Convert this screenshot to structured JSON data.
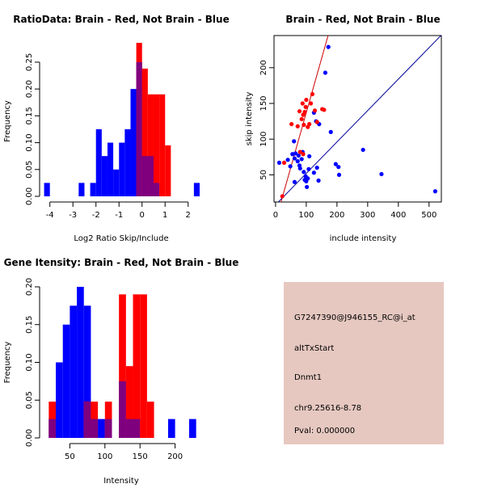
{
  "colors": {
    "red": "#ff0000",
    "blue": "#0000ff",
    "overlap": "#7f007f",
    "panel_bg": "#e6c8c0",
    "pval": "#aa0000",
    "red_line": "#cc0000",
    "blue_line": "#000099"
  },
  "chart_data": [
    {
      "id": "ratio",
      "type": "bar",
      "title": "RatioData: Brain - Red, Not Brain - Blue",
      "xlabel": "Log2 Ratio Skip/Include",
      "ylabel": "Frequency",
      "xlim": [
        -4.2,
        2.5
      ],
      "ylim": [
        0,
        0.28
      ],
      "xticks": [
        -4,
        -3,
        -2,
        -1,
        0,
        1,
        2
      ],
      "yticks": [
        0.0,
        0.05,
        0.1,
        0.15,
        0.2,
        0.25
      ],
      "bin_width": 0.25,
      "series": [
        {
          "name": "Not Brain",
          "color_key": "blue",
          "bins": [
            {
              "x0": -4.25,
              "v": 0.025
            },
            {
              "x0": -2.75,
              "v": 0.025
            },
            {
              "x0": -2.25,
              "v": 0.025
            },
            {
              "x0": -2.0,
              "v": 0.125
            },
            {
              "x0": -1.75,
              "v": 0.075
            },
            {
              "x0": -1.5,
              "v": 0.1
            },
            {
              "x0": -1.25,
              "v": 0.05
            },
            {
              "x0": -1.0,
              "v": 0.1
            },
            {
              "x0": -0.75,
              "v": 0.125
            },
            {
              "x0": -0.5,
              "v": 0.2
            },
            {
              "x0": -0.25,
              "v": 0.25
            },
            {
              "x0": 0.0,
              "v": 0.075
            },
            {
              "x0": 0.25,
              "v": 0.075
            },
            {
              "x0": 0.5,
              "v": 0.025
            },
            {
              "x0": 2.25,
              "v": 0.025
            }
          ]
        },
        {
          "name": "Brain",
          "color_key": "red",
          "bins": [
            {
              "x0": -0.25,
              "v": 0.286
            },
            {
              "x0": 0.0,
              "v": 0.238
            },
            {
              "x0": 0.25,
              "v": 0.19
            },
            {
              "x0": 0.5,
              "v": 0.19
            },
            {
              "x0": 0.75,
              "v": 0.19
            },
            {
              "x0": 1.0,
              "v": 0.095
            }
          ]
        }
      ]
    },
    {
      "id": "scatter",
      "type": "scatter",
      "title": "Brain - Red, Not Brain - Blue",
      "xlabel": "include intensity",
      "ylabel": "skip intensity",
      "xlim": [
        -5,
        540
      ],
      "ylim": [
        12,
        245
      ],
      "xticks": [
        0,
        100,
        200,
        300,
        400,
        500
      ],
      "yticks": [
        50,
        100,
        150,
        200
      ],
      "series": [
        {
          "name": "Not Brain",
          "color_key": "blue",
          "points": [
            [
              12,
              67
            ],
            [
              48,
              62
            ],
            [
              40,
              71
            ],
            [
              55,
              79
            ],
            [
              62,
              73
            ],
            [
              65,
              80
            ],
            [
              72,
              69
            ],
            [
              75,
              77
            ],
            [
              78,
              63
            ],
            [
              80,
              59
            ],
            [
              85,
              72
            ],
            [
              88,
              82
            ],
            [
              92,
              54
            ],
            [
              95,
              43
            ],
            [
              98,
              48
            ],
            [
              100,
              41
            ],
            [
              102,
              33
            ],
            [
              105,
              45
            ],
            [
              108,
              58
            ],
            [
              110,
              76
            ],
            [
              125,
              53
            ],
            [
              135,
              60
            ],
            [
              140,
              42
            ],
            [
              62,
              40
            ],
            [
              125,
              137
            ],
            [
              132,
              125
            ],
            [
              142,
              121
            ],
            [
              172,
              229
            ],
            [
              162,
              193
            ],
            [
              180,
              110
            ],
            [
              196,
              65
            ],
            [
              205,
              61
            ],
            [
              207,
              50
            ],
            [
              285,
              85
            ],
            [
              345,
              51
            ],
            [
              520,
              27
            ],
            [
              60,
              97
            ]
          ]
        },
        {
          "name": "Brain",
          "color_key": "red",
          "points": [
            [
              22,
              20
            ],
            [
              28,
              67
            ],
            [
              52,
              121
            ],
            [
              72,
              118
            ],
            [
              78,
              139
            ],
            [
              85,
              128
            ],
            [
              88,
              150
            ],
            [
              90,
              134
            ],
            [
              92,
              120
            ],
            [
              95,
              138
            ],
            [
              98,
              145
            ],
            [
              100,
              155
            ],
            [
              105,
              117
            ],
            [
              110,
              121
            ],
            [
              115,
              150
            ],
            [
              120,
              163
            ],
            [
              128,
              140
            ],
            [
              135,
              124
            ],
            [
              152,
              142
            ],
            [
              158,
              141
            ],
            [
              80,
              82
            ],
            [
              90,
              79
            ]
          ]
        }
      ],
      "fit_lines": [
        {
          "name": "Brain fit",
          "color_key": "red_line",
          "slope": 1.52,
          "intercept": -15
        },
        {
          "name": "Not Brain fit",
          "color_key": "blue_line",
          "slope": 0.44,
          "intercept": 8
        }
      ]
    },
    {
      "id": "gene",
      "type": "bar",
      "title": "Gene Itensity: Brain - Red, Not Brain - Blue",
      "xlabel": "Intensity",
      "ylabel": "Frequency",
      "xlim": [
        15,
        235
      ],
      "ylim": [
        0,
        0.2
      ],
      "xticks": [
        50,
        100,
        150,
        200
      ],
      "yticks": [
        0.0,
        0.05,
        0.1,
        0.15,
        0.2
      ],
      "bin_width": 10,
      "series": [
        {
          "name": "Not Brain",
          "color_key": "blue",
          "bins": [
            {
              "x0": 20,
              "v": 0.025
            },
            {
              "x0": 30,
              "v": 0.1
            },
            {
              "x0": 40,
              "v": 0.15
            },
            {
              "x0": 50,
              "v": 0.175
            },
            {
              "x0": 60,
              "v": 0.2
            },
            {
              "x0": 70,
              "v": 0.175
            },
            {
              "x0": 80,
              "v": 0.025
            },
            {
              "x0": 90,
              "v": 0.025
            },
            {
              "x0": 100,
              "v": 0.025
            },
            {
              "x0": 120,
              "v": 0.075
            },
            {
              "x0": 130,
              "v": 0.025
            },
            {
              "x0": 140,
              "v": 0.025
            },
            {
              "x0": 190,
              "v": 0.025
            },
            {
              "x0": 220,
              "v": 0.025
            }
          ]
        },
        {
          "name": "Brain",
          "color_key": "red",
          "bins": [
            {
              "x0": 20,
              "v": 0.048
            },
            {
              "x0": 70,
              "v": 0.048
            },
            {
              "x0": 80,
              "v": 0.048
            },
            {
              "x0": 100,
              "v": 0.048
            },
            {
              "x0": 120,
              "v": 0.19
            },
            {
              "x0": 130,
              "v": 0.095
            },
            {
              "x0": 140,
              "v": 0.19
            },
            {
              "x0": 150,
              "v": 0.19
            },
            {
              "x0": 160,
              "v": 0.048
            }
          ]
        }
      ]
    }
  ],
  "info_panel": {
    "probe": "G7247390@J946155_RC@i_at",
    "event": "altTxStart",
    "gene": "Dnmt1",
    "location": "chr9.25616-8.78",
    "pval": "Pval: 0.000000"
  }
}
